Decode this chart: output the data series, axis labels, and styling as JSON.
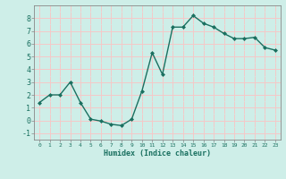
{
  "x": [
    0,
    1,
    2,
    3,
    4,
    5,
    6,
    7,
    8,
    9,
    10,
    11,
    12,
    13,
    14,
    15,
    16,
    17,
    18,
    19,
    20,
    21,
    22,
    23
  ],
  "y": [
    1.4,
    2.0,
    2.0,
    3.0,
    1.4,
    0.1,
    -0.05,
    -0.3,
    -0.4,
    0.1,
    2.3,
    5.3,
    3.6,
    7.3,
    7.3,
    8.2,
    7.6,
    7.3,
    6.8,
    6.4,
    6.4,
    6.5,
    5.7,
    5.5
  ],
  "xlabel": "Humidex (Indice chaleur)",
  "xlim": [
    -0.5,
    23.5
  ],
  "ylim": [
    -1.5,
    9.0
  ],
  "yticks": [
    -1,
    0,
    1,
    2,
    3,
    4,
    5,
    6,
    7,
    8
  ],
  "xticks": [
    0,
    1,
    2,
    3,
    4,
    5,
    6,
    7,
    8,
    9,
    10,
    11,
    12,
    13,
    14,
    15,
    16,
    17,
    18,
    19,
    20,
    21,
    22,
    23
  ],
  "line_color": "#1a7060",
  "marker_color": "#1a7060",
  "bg_color": "#ceeee8",
  "grid_major_color": "#f5c8c8",
  "grid_minor_color": "#ceeee8"
}
